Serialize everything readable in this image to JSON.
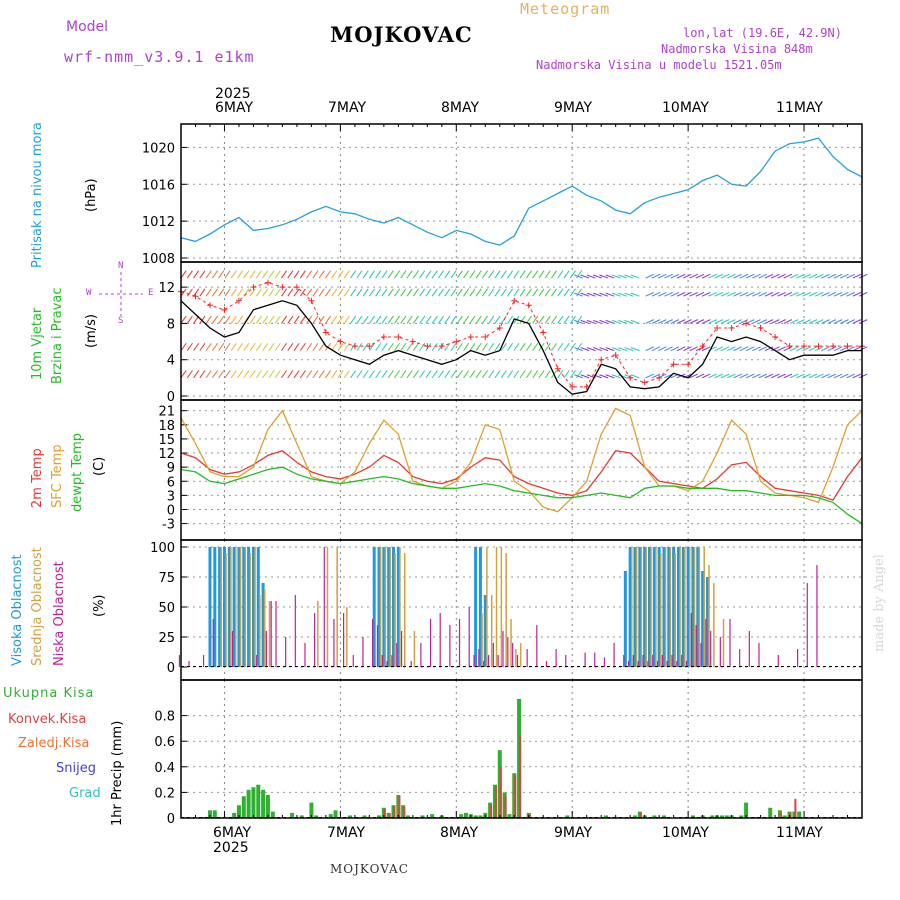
{
  "header": {
    "model_label": "Model",
    "model_value": "wrf-nmm_v3.9.1 e1km",
    "station": "MOJKOVAC",
    "meteogram": "Meteogram",
    "lonlat": "lon,lat (19.6E, 42.9N)",
    "elevation": "Nadmorska Visina 848m",
    "model_elevation": "Nadmorska Visina u modelu 1521.05m"
  },
  "footer": {
    "station": "MOJKOVAC",
    "credit": "made by Angel"
  },
  "time_axis": {
    "year": "2025",
    "day_labels": [
      "6MAY",
      "7MAY",
      "8MAY",
      "9MAY",
      "10MAY",
      "11MAY"
    ],
    "hours_span": 141,
    "day_ticks_hours": [
      9,
      33,
      57,
      81,
      105,
      129
    ]
  },
  "panel_labels": {
    "pressure": "Pritisak na nivou mora",
    "pressure_unit": "(hPa)",
    "wind_1": "10m Vjetar",
    "wind_2": "Brzina i Pravac",
    "wind_unit": "(m/s)",
    "compass": {
      "n": "N",
      "s": "S",
      "e": "E",
      "w": "W"
    },
    "temp_2m": "2m Temp",
    "temp_sfc": "SFC Temp",
    "temp_dew": "dewpt Temp",
    "temp_unit": "(C)",
    "cloud_high": "Visoka Oblacnost",
    "cloud_mid": "Srednja Oblacnost",
    "cloud_low": "Niska Oblacnost",
    "cloud_unit": "(%)",
    "precip_total": "Ukupna Kisa",
    "precip_conv": "Konvek.Kisa",
    "precip_frozen": "Zaledj.Kisa",
    "precip_snow": "Snijeg",
    "precip_hail": "Grad",
    "precip_unit": "1hr Precip (mm)"
  },
  "colors": {
    "pressure": "#22a0e0",
    "wind_speed": "#000000",
    "wind_gust": "#ff2020",
    "temp_2m": "#e83a30",
    "temp_sfc": "#e0a030",
    "temp_dew": "#20c020",
    "cloud_high": "#1e9be0",
    "cloud_mid": "#d4a040",
    "cloud_low": "#c0209a",
    "precip_total": "#30b030",
    "precip_conv": "#e04040",
    "precip_frozen": "#f07030",
    "precip_snow": "#4040e0",
    "precip_hail": "#30c0c0",
    "model_label": "#b040d0",
    "meteogram_label": "#e8b060",
    "header_right": "#b040d0"
  },
  "chart_data": [
    {
      "type": "line",
      "id": "pressure",
      "ylim": [
        1008,
        1022
      ],
      "yticks": [
        "1008",
        "1012",
        "1016",
        "1020"
      ],
      "x_hours": [
        0,
        3,
        6,
        9,
        12,
        15,
        18,
        21,
        24,
        27,
        30,
        33,
        36,
        39,
        42,
        45,
        48,
        51,
        54,
        57,
        60,
        63,
        66,
        69,
        72,
        75,
        78,
        81,
        84,
        87,
        90,
        93,
        96,
        99,
        102,
        105,
        108,
        111,
        114,
        117,
        120,
        123,
        126,
        129,
        132,
        135,
        138,
        141
      ],
      "series": [
        {
          "name": "pressure",
          "values": [
            1010.2,
            1009.8,
            1010.6,
            1011.6,
            1012.4,
            1011.0,
            1011.2,
            1011.6,
            1012.2,
            1013.0,
            1013.6,
            1013.0,
            1012.8,
            1012.2,
            1011.8,
            1012.4,
            1011.6,
            1010.8,
            1010.2,
            1011.0,
            1010.6,
            1009.8,
            1009.4,
            1010.4,
            1013.4,
            1014.2,
            1015.0,
            1015.8,
            1014.8,
            1014.2,
            1013.2,
            1012.8,
            1014.0,
            1014.6,
            1015.0,
            1015.4,
            1016.4,
            1017.0,
            1016.0,
            1015.8,
            1017.4,
            1019.6,
            1020.4,
            1020.6,
            1021.0,
            1019.0,
            1017.6,
            1016.8
          ]
        }
      ]
    },
    {
      "type": "line",
      "id": "wind",
      "ylim": [
        0,
        14
      ],
      "yticks": [
        "0",
        "4",
        "8",
        "12"
      ],
      "x_hours": [
        0,
        3,
        6,
        9,
        12,
        15,
        18,
        21,
        24,
        27,
        30,
        33,
        36,
        39,
        42,
        45,
        48,
        51,
        54,
        57,
        60,
        63,
        66,
        69,
        72,
        75,
        78,
        81,
        84,
        87,
        90,
        93,
        96,
        99,
        102,
        105,
        108,
        111,
        114,
        117,
        120,
        123,
        126,
        129,
        132,
        135,
        138,
        141
      ],
      "series": [
        {
          "name": "speed",
          "values": [
            10.5,
            9.0,
            7.5,
            6.5,
            7.0,
            9.5,
            10.0,
            10.5,
            10.0,
            8.0,
            5.5,
            4.5,
            4.0,
            3.5,
            4.5,
            5.0,
            4.5,
            4.0,
            3.5,
            4.0,
            5.0,
            4.5,
            5.0,
            8.5,
            8.0,
            5.0,
            1.5,
            0.2,
            0.5,
            3.5,
            3.0,
            1.0,
            0.8,
            1.0,
            2.5,
            2.0,
            3.5,
            6.5,
            6.0,
            6.5,
            6.0,
            5.0,
            4.0,
            4.5,
            4.5,
            4.5,
            5.0,
            5.0
          ]
        },
        {
          "name": "gust",
          "values": [
            11.5,
            11.0,
            10.0,
            9.5,
            10.5,
            12.0,
            12.5,
            12.0,
            12.0,
            10.5,
            7.0,
            6.0,
            5.5,
            5.5,
            6.5,
            6.5,
            6.0,
            5.5,
            5.5,
            6.0,
            6.5,
            6.5,
            7.5,
            10.5,
            10.0,
            7.0,
            3.0,
            1.0,
            1.0,
            4.0,
            4.5,
            2.0,
            1.5,
            2.0,
            3.5,
            3.5,
            5.5,
            7.5,
            7.5,
            8.0,
            7.5,
            6.5,
            5.5,
            5.5,
            5.5,
            5.5,
            5.5,
            5.5
          ]
        }
      ]
    },
    {
      "type": "line",
      "id": "temperature",
      "ylim": [
        -5,
        22
      ],
      "yticks": [
        "-3",
        "0",
        "3",
        "6",
        "9",
        "12",
        "15",
        "18",
        "21"
      ],
      "x_hours": [
        0,
        3,
        6,
        9,
        12,
        15,
        18,
        21,
        24,
        27,
        30,
        33,
        36,
        39,
        42,
        45,
        48,
        51,
        54,
        57,
        60,
        63,
        66,
        69,
        72,
        75,
        78,
        81,
        84,
        87,
        90,
        93,
        96,
        99,
        102,
        105,
        108,
        111,
        114,
        117,
        120,
        123,
        126,
        129,
        132,
        135,
        138,
        141
      ],
      "series": [
        {
          "name": "2m Temp",
          "values": [
            12.0,
            11.0,
            8.5,
            7.5,
            8.0,
            9.5,
            11.5,
            12.5,
            10.0,
            8.0,
            7.0,
            6.5,
            7.5,
            9.0,
            11.5,
            10.0,
            7.0,
            6.0,
            5.5,
            6.5,
            9.0,
            11.0,
            10.5,
            7.0,
            5.5,
            4.5,
            3.5,
            3.0,
            4.0,
            8.0,
            12.5,
            12.0,
            9.0,
            6.0,
            5.5,
            5.0,
            4.5,
            6.5,
            9.5,
            10.0,
            7.0,
            4.5,
            4.0,
            3.5,
            3.0,
            2.0,
            7.0,
            11.0
          ]
        },
        {
          "name": "SFC Temp",
          "values": [
            19.5,
            14.0,
            8.0,
            7.0,
            7.0,
            9.0,
            17.0,
            21.0,
            14.0,
            7.0,
            6.0,
            5.5,
            8.0,
            14.0,
            19.0,
            16.0,
            6.0,
            5.0,
            4.5,
            6.0,
            10.0,
            18.0,
            17.0,
            6.0,
            4.0,
            0.5,
            -0.5,
            2.5,
            6.0,
            16.0,
            21.5,
            20.0,
            9.0,
            5.0,
            5.0,
            4.0,
            6.0,
            12.0,
            19.0,
            16.0,
            6.0,
            3.5,
            3.0,
            2.5,
            1.5,
            9.0,
            18.0,
            21.0
          ]
        },
        {
          "name": "dewpt Temp",
          "values": [
            8.5,
            8.0,
            6.0,
            5.5,
            6.5,
            7.5,
            8.5,
            9.0,
            7.5,
            6.5,
            6.0,
            5.5,
            6.0,
            6.5,
            7.0,
            6.5,
            5.5,
            5.0,
            4.5,
            4.5,
            5.0,
            5.5,
            5.0,
            4.0,
            3.5,
            3.0,
            2.5,
            2.5,
            3.0,
            3.5,
            3.0,
            2.5,
            4.5,
            5.0,
            5.0,
            4.5,
            4.5,
            4.5,
            4.0,
            4.0,
            3.5,
            3.0,
            3.0,
            3.0,
            2.5,
            1.5,
            -1.0,
            -3.0
          ]
        }
      ]
    },
    {
      "type": "bar",
      "id": "cloud",
      "ylim": [
        0,
        100
      ],
      "yticks": [
        "0",
        "25",
        "50",
        "75",
        "100"
      ],
      "x_hours": [
        0,
        2,
        5,
        6,
        7,
        8,
        9,
        10,
        11,
        12,
        13,
        14,
        15,
        16,
        17,
        18,
        19,
        20,
        22,
        24,
        26,
        28,
        30,
        32,
        34,
        36,
        38,
        40,
        41,
        42,
        43,
        44,
        45,
        46,
        48,
        50,
        52,
        54,
        56,
        58,
        60,
        61,
        62,
        63,
        64,
        65,
        66,
        67,
        68,
        69,
        70,
        72,
        74,
        76,
        78,
        80,
        84,
        86,
        88,
        90,
        92,
        93,
        94,
        95,
        96,
        97,
        98,
        99,
        100,
        101,
        102,
        103,
        104,
        105,
        106,
        107,
        108,
        109,
        110,
        112,
        114,
        116,
        118,
        120,
        124,
        128,
        130,
        132
      ],
      "series": [
        {
          "name": "Visoka Oblacnost",
          "values": [
            0,
            0,
            0,
            100,
            100,
            100,
            100,
            100,
            100,
            100,
            100,
            100,
            100,
            100,
            70,
            0,
            0,
            0,
            0,
            0,
            0,
            0,
            0,
            0,
            0,
            0,
            0,
            100,
            100,
            100,
            100,
            100,
            100,
            0,
            0,
            0,
            0,
            0,
            0,
            0,
            0,
            100,
            100,
            60,
            0,
            0,
            0,
            0,
            0,
            0,
            0,
            0,
            0,
            0,
            0,
            0,
            0,
            0,
            0,
            0,
            80,
            100,
            100,
            100,
            100,
            100,
            100,
            100,
            100,
            100,
            100,
            100,
            100,
            100,
            100,
            100,
            80,
            75,
            0,
            0,
            0,
            0,
            0,
            0,
            0,
            0,
            0,
            0
          ]
        },
        {
          "name": "Srednja Oblacnost",
          "values": [
            0,
            0,
            0,
            0,
            0,
            100,
            95,
            100,
            100,
            100,
            100,
            95,
            100,
            60,
            65,
            55,
            0,
            0,
            0,
            0,
            0,
            55,
            100,
            100,
            50,
            0,
            0,
            0,
            100,
            100,
            100,
            95,
            100,
            95,
            30,
            0,
            0,
            0,
            0,
            0,
            0,
            0,
            45,
            100,
            60,
            100,
            100,
            95,
            40,
            15,
            20,
            0,
            0,
            0,
            0,
            0,
            0,
            0,
            0,
            0,
            0,
            100,
            100,
            100,
            100,
            100,
            100,
            95,
            100,
            100,
            95,
            100,
            100,
            100,
            100,
            100,
            100,
            85,
            70,
            40,
            0,
            0,
            0,
            0,
            0,
            0,
            0,
            0
          ]
        },
        {
          "name": "Niska Oblacnost",
          "values": [
            10,
            5,
            10,
            0,
            40,
            0,
            0,
            0,
            30,
            0,
            0,
            0,
            0,
            10,
            0,
            30,
            55,
            55,
            25,
            60,
            20,
            45,
            100,
            40,
            45,
            10,
            25,
            40,
            35,
            10,
            5,
            10,
            20,
            30,
            5,
            20,
            40,
            45,
            35,
            40,
            50,
            10,
            15,
            5,
            10,
            20,
            10,
            30,
            25,
            20,
            10,
            15,
            35,
            5,
            15,
            10,
            12,
            12,
            8,
            20,
            10,
            5,
            10,
            5,
            10,
            5,
            10,
            5,
            10,
            5,
            10,
            5,
            10,
            5,
            45,
            35,
            20,
            40,
            30,
            25,
            40,
            15,
            30,
            20,
            10,
            15,
            70,
            85
          ]
        }
      ]
    },
    {
      "type": "bar",
      "id": "precipitation",
      "ylim": [
        0,
        1.0
      ],
      "yticks": [
        "0",
        "0.2",
        "0.4",
        "0.6",
        "0.8"
      ],
      "x_hours": [
        6,
        7,
        11,
        12,
        13,
        14,
        15,
        16,
        17,
        18,
        19,
        23,
        25,
        27,
        28,
        31,
        32,
        35,
        38,
        41,
        42,
        43,
        44,
        45,
        46,
        47,
        50,
        52,
        54,
        58,
        59,
        60,
        61,
        62,
        63,
        64,
        65,
        66,
        67,
        68,
        69,
        70,
        72,
        80,
        88,
        94,
        95,
        96,
        98,
        100,
        106,
        108,
        110,
        111,
        112,
        113,
        114,
        116,
        117,
        122,
        124,
        125,
        126,
        127,
        128
      ],
      "series": [
        {
          "name": "Ukupna Kisa",
          "values": [
            0.06,
            0.06,
            0.04,
            0.1,
            0.17,
            0.22,
            0.24,
            0.26,
            0.22,
            0.18,
            0.05,
            0.04,
            0.02,
            0.12,
            0.02,
            0.03,
            0.06,
            0.02,
            0.02,
            0.02,
            0.08,
            0.04,
            0.1,
            0.18,
            0.1,
            0.02,
            0.02,
            0.03,
            0.02,
            0.03,
            0.04,
            0.03,
            0.02,
            0.02,
            0.04,
            0.12,
            0.26,
            0.53,
            0.2,
            0.03,
            0.35,
            0.93,
            0.04,
            0.02,
            0.02,
            0.02,
            0.05,
            0.02,
            0.02,
            0.02,
            0.02,
            0.02,
            0.02,
            0.02,
            0.02,
            0.02,
            0.02,
            0.02,
            0.12,
            0.08,
            0.06,
            0.02,
            0.05,
            0.05,
            0.05
          ]
        },
        {
          "name": "Konvek.Kisa",
          "values": [
            0,
            0,
            0,
            0,
            0,
            0,
            0,
            0,
            0,
            0,
            0,
            0,
            0,
            0,
            0,
            0,
            0,
            0,
            0,
            0,
            0.07,
            0.03,
            0.09,
            0.17,
            0.09,
            0,
            0,
            0,
            0,
            0,
            0,
            0,
            0,
            0,
            0,
            0.1,
            0.25,
            0.4,
            0.17,
            0,
            0.33,
            0.64,
            0.03,
            0,
            0,
            0,
            0.04,
            0,
            0,
            0,
            0,
            0,
            0,
            0,
            0,
            0,
            0,
            0,
            0,
            0,
            0.04,
            0,
            0.04,
            0.15,
            0
          ]
        }
      ]
    }
  ]
}
